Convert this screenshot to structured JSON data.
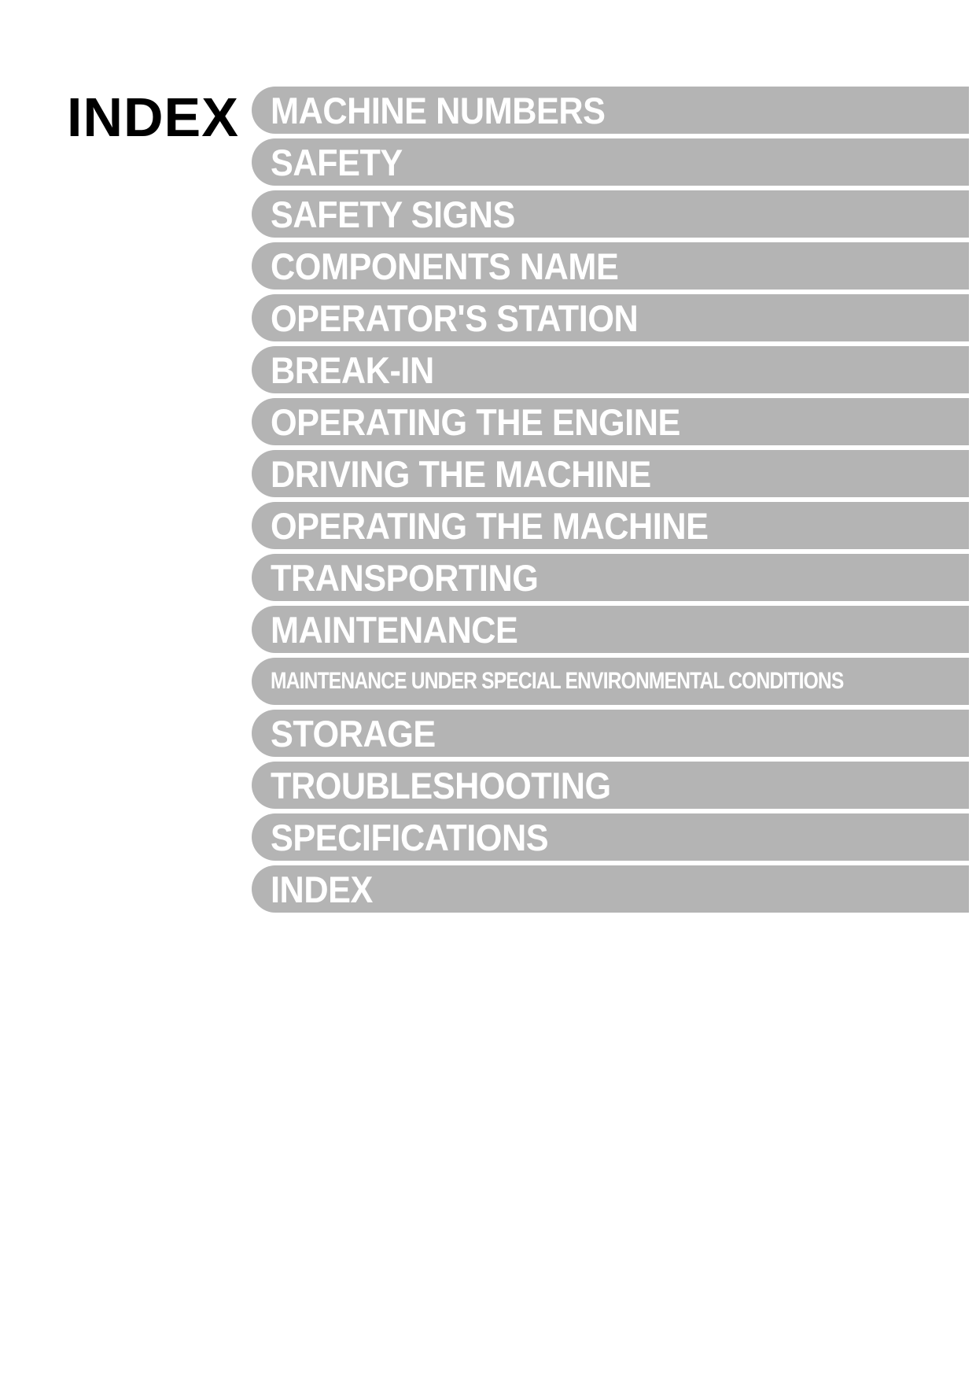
{
  "page": {
    "title": "INDEX",
    "background_color": "#ffffff",
    "title_color": "#000000",
    "title_fontsize": 70,
    "title_fontweight": 900
  },
  "tabs": {
    "bg_color": "#b4b4b4",
    "text_color": "#ffffff",
    "height": 60,
    "border_radius_left": 30,
    "normal_fontsize": 47,
    "small_fontsize": 30,
    "gap": 6,
    "items": [
      {
        "label": "MACHINE NUMBERS",
        "size": "normal"
      },
      {
        "label": "SAFETY",
        "size": "normal"
      },
      {
        "label": "SAFETY SIGNS",
        "size": "normal"
      },
      {
        "label": "COMPONENTS NAME",
        "size": "normal"
      },
      {
        "label": "OPERATOR'S STATION",
        "size": "normal"
      },
      {
        "label": "BREAK-IN",
        "size": "normal"
      },
      {
        "label": "OPERATING THE ENGINE",
        "size": "normal"
      },
      {
        "label": "DRIVING THE MACHINE",
        "size": "normal"
      },
      {
        "label": "OPERATING THE MACHINE",
        "size": "normal"
      },
      {
        "label": "TRANSPORTING",
        "size": "normal"
      },
      {
        "label": "MAINTENANCE",
        "size": "normal"
      },
      {
        "label": "MAINTENANCE UNDER SPECIAL ENVIRONMENTAL CONDITIONS",
        "size": "small"
      },
      {
        "label": "STORAGE",
        "size": "normal"
      },
      {
        "label": "TROUBLESHOOTING",
        "size": "normal"
      },
      {
        "label": "SPECIFICATIONS",
        "size": "normal"
      },
      {
        "label": "INDEX",
        "size": "normal"
      }
    ]
  }
}
